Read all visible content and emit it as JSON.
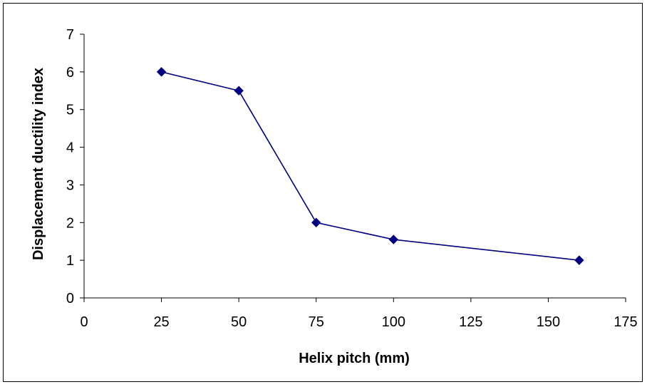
{
  "chart_data": {
    "type": "line",
    "title": "",
    "xlabel": "Helix pitch (mm)",
    "ylabel": "Displacement ductility index",
    "xlim": [
      0,
      175
    ],
    "ylim": [
      0,
      7
    ],
    "xticks": [
      0,
      25,
      50,
      75,
      100,
      125,
      150,
      175
    ],
    "yticks": [
      0,
      1,
      2,
      3,
      4,
      5,
      6,
      7
    ],
    "grid": false,
    "legend": "none",
    "series": [
      {
        "color": "#000080",
        "marker": "diamond",
        "points": [
          {
            "x": 25,
            "y": 6.0
          },
          {
            "x": 50,
            "y": 5.5
          },
          {
            "x": 75,
            "y": 2.0
          },
          {
            "x": 100,
            "y": 1.55
          },
          {
            "x": 160,
            "y": 1.0
          }
        ]
      }
    ]
  }
}
